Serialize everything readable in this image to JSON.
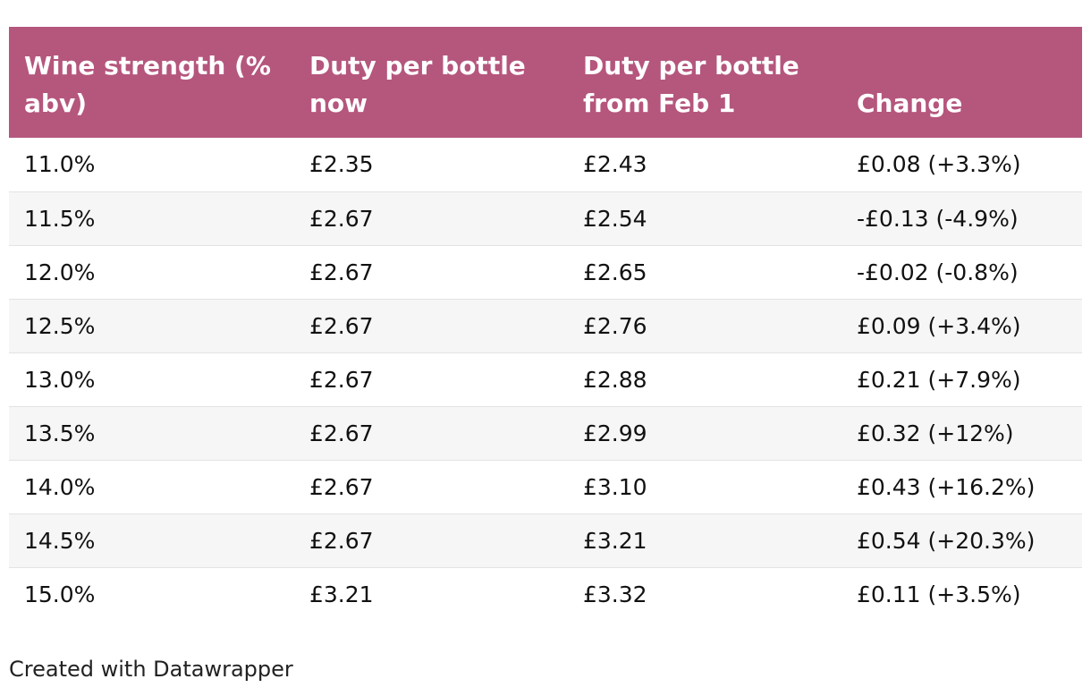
{
  "chart_data": {
    "type": "table",
    "columns": [
      "Wine strength (% abv)",
      "Duty per bottle now",
      "Duty per bottle from Feb 1",
      "Change"
    ],
    "rows": [
      [
        "11.0%",
        "£2.35",
        "£2.43",
        "£0.08 (+3.3%)"
      ],
      [
        "11.5%",
        "£2.67",
        "£2.54",
        "-£0.13 (-4.9%)"
      ],
      [
        "12.0%",
        "£2.67",
        "£2.65",
        "-£0.02 (-0.8%)"
      ],
      [
        "12.5%",
        "£2.67",
        "£2.76",
        "£0.09 (+3.4%)"
      ],
      [
        "13.0%",
        "£2.67",
        "£2.88",
        "£0.21 (+7.9%)"
      ],
      [
        "13.5%",
        "£2.67",
        "£2.99",
        "£0.32 (+12%)"
      ],
      [
        "14.0%",
        "£2.67",
        "£3.10",
        "£0.43 (+16.2%)"
      ],
      [
        "14.5%",
        "£2.67",
        "£3.21",
        "£0.54 (+20.3%)"
      ],
      [
        "15.0%",
        "£3.21",
        "£3.32",
        "£0.11 (+3.5%)"
      ]
    ]
  },
  "header": {
    "col1": "Wine strength (% abv)",
    "col2": "Duty per bottle now",
    "col3": "Duty per bottle from Feb 1",
    "col4": "Change"
  },
  "footer": {
    "credit": "Created with Datawrapper"
  },
  "colors": {
    "header_bg": "#b5567d",
    "header_text": "#ffffff",
    "alt_row_bg": "#f6f6f6"
  }
}
